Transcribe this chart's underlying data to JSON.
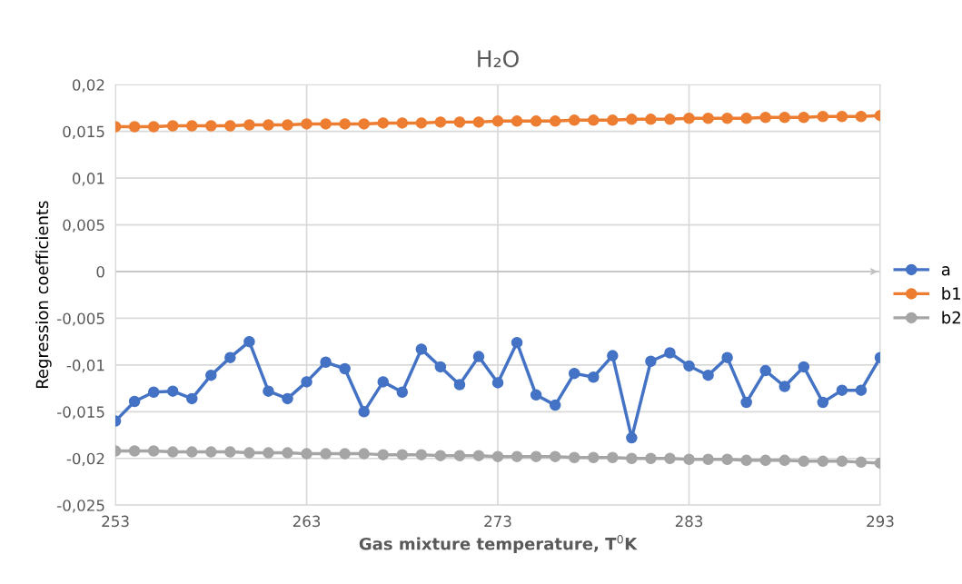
{
  "chart_data": {
    "type": "line",
    "title": "H₂O",
    "xlabel": "Gas mixture temperature, T$^{0}$K",
    "ylabel": "Regression coefficients",
    "x": [
      253,
      254,
      255,
      256,
      257,
      258,
      259,
      260,
      261,
      262,
      263,
      264,
      265,
      266,
      267,
      268,
      269,
      270,
      271,
      272,
      273,
      274,
      275,
      276,
      277,
      278,
      279,
      280,
      281,
      282,
      283,
      284,
      285,
      286,
      287,
      288,
      289,
      290,
      291,
      292,
      293
    ],
    "series": [
      {
        "name": "a",
        "color": "#4472c4",
        "values": [
          -0.016,
          -0.0139,
          -0.0129,
          -0.0128,
          -0.0136,
          -0.0111,
          -0.0092,
          -0.0075,
          -0.0128,
          -0.0136,
          -0.0118,
          -0.0097,
          -0.0104,
          -0.015,
          -0.0118,
          -0.0129,
          -0.0083,
          -0.0102,
          -0.0121,
          -0.0091,
          -0.0119,
          -0.0076,
          -0.0132,
          -0.0143,
          -0.0109,
          -0.0113,
          -0.009,
          -0.0178,
          -0.0096,
          -0.0087,
          -0.0101,
          -0.0111,
          -0.0092,
          -0.014,
          -0.0106,
          -0.0123,
          -0.0102,
          -0.014,
          -0.0127,
          -0.0127,
          -0.0092
        ]
      },
      {
        "name": "b1",
        "color": "#ed7d31",
        "values": [
          0.0155,
          0.0155,
          0.0155,
          0.0156,
          0.0156,
          0.0156,
          0.0156,
          0.0157,
          0.0157,
          0.0157,
          0.0158,
          0.0158,
          0.0158,
          0.0158,
          0.0159,
          0.0159,
          0.0159,
          0.016,
          0.016,
          0.016,
          0.0161,
          0.0161,
          0.0161,
          0.0161,
          0.0162,
          0.0162,
          0.0162,
          0.0163,
          0.0163,
          0.0163,
          0.0164,
          0.0164,
          0.0164,
          0.0164,
          0.0165,
          0.0165,
          0.0165,
          0.0166,
          0.0166,
          0.0166,
          0.0167
        ]
      },
      {
        "name": "b2",
        "color": "#a5a5a5",
        "values": [
          -0.0192,
          -0.0192,
          -0.0192,
          -0.0193,
          -0.0193,
          -0.0193,
          -0.0193,
          -0.0194,
          -0.0194,
          -0.0194,
          -0.0195,
          -0.0195,
          -0.0195,
          -0.0195,
          -0.0196,
          -0.0196,
          -0.0196,
          -0.0197,
          -0.0197,
          -0.0197,
          -0.0198,
          -0.0198,
          -0.0198,
          -0.0198,
          -0.0199,
          -0.0199,
          -0.0199,
          -0.02,
          -0.02,
          -0.02,
          -0.0201,
          -0.0201,
          -0.0201,
          -0.0202,
          -0.0202,
          -0.0202,
          -0.0203,
          -0.0203,
          -0.0203,
          -0.0204,
          -0.0205
        ]
      }
    ],
    "xlim": [
      253,
      293
    ],
    "xticks": [
      253,
      263,
      273,
      283,
      293
    ],
    "ylim": [
      -0.025,
      0.02
    ],
    "yticks": [
      {
        "value": -0.025,
        "label": "-0,025"
      },
      {
        "value": -0.02,
        "label": "-0,02"
      },
      {
        "value": -0.015,
        "label": "-0,015"
      },
      {
        "value": -0.01,
        "label": "-0,01"
      },
      {
        "value": -0.005,
        "label": "-0,005"
      },
      {
        "value": 0,
        "label": "0"
      },
      {
        "value": 0.005,
        "label": "0,005"
      },
      {
        "value": 0.01,
        "label": "0,01"
      },
      {
        "value": 0.015,
        "label": "0,015"
      },
      {
        "value": 0.02,
        "label": "0,02"
      }
    ],
    "ref_lines": [
      {
        "axis": "y",
        "value": 0,
        "color": "#bfbfbf"
      }
    ],
    "grid": true,
    "legend": "right",
    "marker": "circle",
    "line_style": "solid"
  }
}
